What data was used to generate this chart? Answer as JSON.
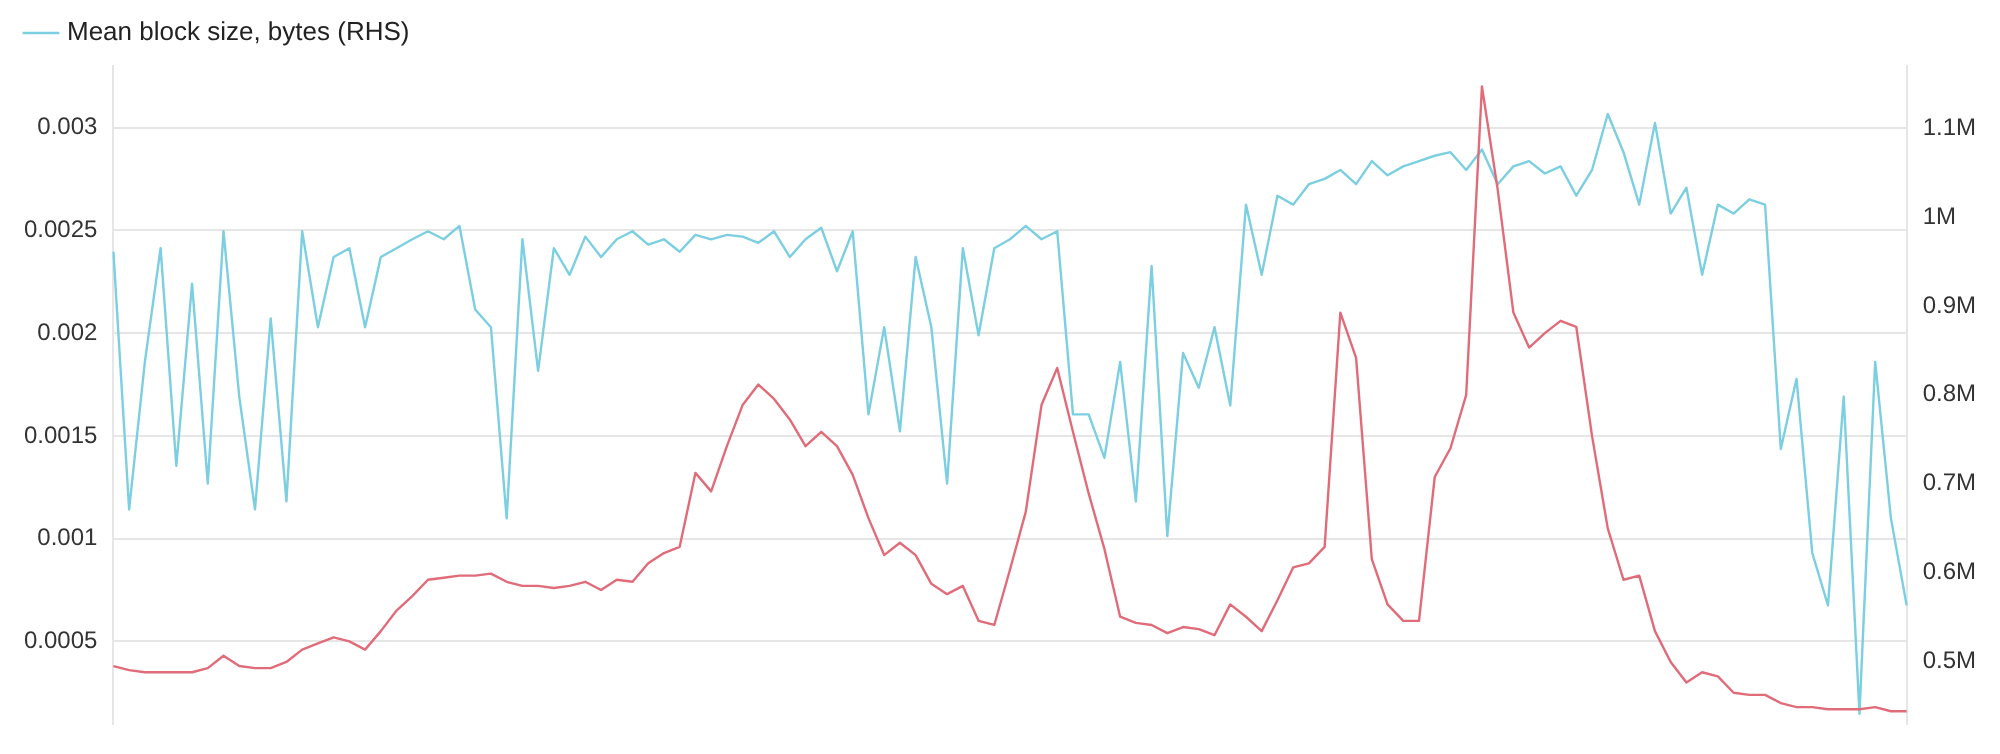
{
  "chart_data": {
    "type": "line",
    "categories": [
      null,
      null,
      null,
      null,
      null,
      null,
      null,
      null,
      null,
      null,
      null,
      null,
      null,
      null,
      null,
      null,
      null,
      null,
      null,
      null,
      null,
      null,
      null,
      null,
      null,
      null,
      null,
      null,
      null,
      null,
      null,
      null,
      null,
      null,
      null,
      null,
      null,
      null,
      null,
      null,
      null,
      null,
      null,
      null,
      null,
      null,
      null,
      null,
      null,
      null,
      null,
      null,
      null,
      null,
      null,
      null,
      null,
      null,
      null,
      null,
      null,
      null,
      null,
      null,
      null,
      null,
      null,
      null,
      null,
      null,
      null,
      null,
      null,
      null,
      null,
      null,
      null,
      null,
      null,
      null,
      null,
      null,
      null,
      null,
      null,
      null,
      null,
      null,
      null,
      null,
      null,
      null,
      null,
      null,
      null,
      null,
      null,
      null,
      null,
      null,
      null,
      null,
      null,
      null,
      null,
      null,
      null,
      null,
      null,
      null,
      null,
      null,
      null,
      null,
      null
    ],
    "series": [
      {
        "color": "#e06c7a",
        "values": [
          0.00038,
          0.00036,
          0.00035,
          0.00035,
          0.00035,
          0.00035,
          0.00037,
          0.00043,
          0.00038,
          0.00037,
          0.00037,
          0.0004,
          0.00046,
          0.00049,
          0.00052,
          0.0005,
          0.00046,
          0.00055,
          0.00065,
          0.00072,
          0.0008,
          0.00081,
          0.00082,
          0.00082,
          0.00083,
          0.00079,
          0.00077,
          0.00077,
          0.00076,
          0.00077,
          0.00079,
          0.00075,
          0.0008,
          0.00079,
          0.00088,
          0.00093,
          0.00096,
          0.00132,
          0.00123,
          0.00145,
          0.00165,
          0.00175,
          0.00168,
          0.00158,
          0.00145,
          0.00152,
          0.00145,
          0.00131,
          0.0011,
          0.00092,
          0.00098,
          0.00092,
          0.00078,
          0.00073,
          0.00077,
          0.0006,
          0.00058,
          0.00085,
          0.00113,
          0.00165,
          0.00183,
          0.00152,
          0.00122,
          0.00095,
          0.00062,
          0.00059,
          0.00058,
          0.00054,
          0.00057,
          0.00056,
          0.00053,
          0.00068,
          0.00062,
          0.00055,
          0.0007,
          0.00086,
          0.00088,
          0.00096,
          0.0021,
          0.00188,
          0.0009,
          0.00068,
          0.0006,
          0.0006,
          0.0013,
          0.00144,
          0.0017,
          0.0032,
          0.0027,
          0.0021,
          0.00193,
          0.002,
          0.00206,
          0.00203,
          0.0015,
          0.00105,
          0.0008,
          0.00082,
          0.00055,
          0.0004,
          0.0003,
          0.00035,
          0.00033,
          0.00025,
          0.00024,
          0.00024,
          0.0002,
          0.00018,
          0.00018,
          0.00017,
          0.00017,
          0.00017,
          0.00018,
          0.00016,
          0.00016
        ]
      },
      {
        "name": "Mean block size, bytes (RHS)",
        "color": "#7ccfe0",
        "axis": "y2",
        "values": [
          961000,
          671000,
          837000,
          965000,
          720000,
          925000,
          700000,
          984000,
          798000,
          671000,
          886000,
          680000,
          984000,
          876000,
          955000,
          965000,
          876000,
          955000,
          965000,
          975000,
          984000,
          975000,
          990000,
          896000,
          876000,
          661000,
          975000,
          827000,
          965000,
          935000,
          978000,
          955000,
          975000,
          984000,
          969000,
          975000,
          961000,
          980000,
          975000,
          980000,
          978000,
          971000,
          984000,
          955000,
          975000,
          988000,
          939000,
          984000,
          778000,
          876000,
          759000,
          955000,
          876000,
          700000,
          965000,
          867000,
          965000,
          975000,
          990000,
          975000,
          984000,
          778000,
          778000,
          729000,
          837000,
          680000,
          945000,
          641000,
          847000,
          808000,
          876000,
          788000,
          1014000,
          935000,
          1024000,
          1014000,
          1037000,
          1043000,
          1053000,
          1037000,
          1063000,
          1047000,
          1057000,
          1063000,
          1069000,
          1073000,
          1053000,
          1076000,
          1037000,
          1057000,
          1063000,
          1049000,
          1057000,
          1024000,
          1053000,
          1116000,
          1073000,
          1014000,
          1106000,
          1004000,
          1033000,
          935000,
          1014000,
          1004000,
          1020000,
          1014000,
          739000,
          818000,
          622000,
          563000,
          798000,
          441000,
          837000,
          661000,
          563000
        ]
      }
    ],
    "ylim": [
      0.0001,
      0.0033
    ],
    "yticks": [
      0.0005,
      0.001,
      0.0015,
      0.002,
      0.0025,
      0.003
    ],
    "y2lim": [
      430000,
      1170000
    ],
    "y2ticks": [
      {
        "value": 500000,
        "label": "0.5M"
      },
      {
        "value": 600000,
        "label": "0.6M"
      },
      {
        "value": 700000,
        "label": "0.7M"
      },
      {
        "value": 800000,
        "label": "0.8M"
      },
      {
        "value": 900000,
        "label": "0.9M"
      },
      {
        "value": 1000000,
        "label": "1M"
      },
      {
        "value": 1100000,
        "label": "1.1M"
      }
    ],
    "grid": "y",
    "legend": "top left"
  }
}
